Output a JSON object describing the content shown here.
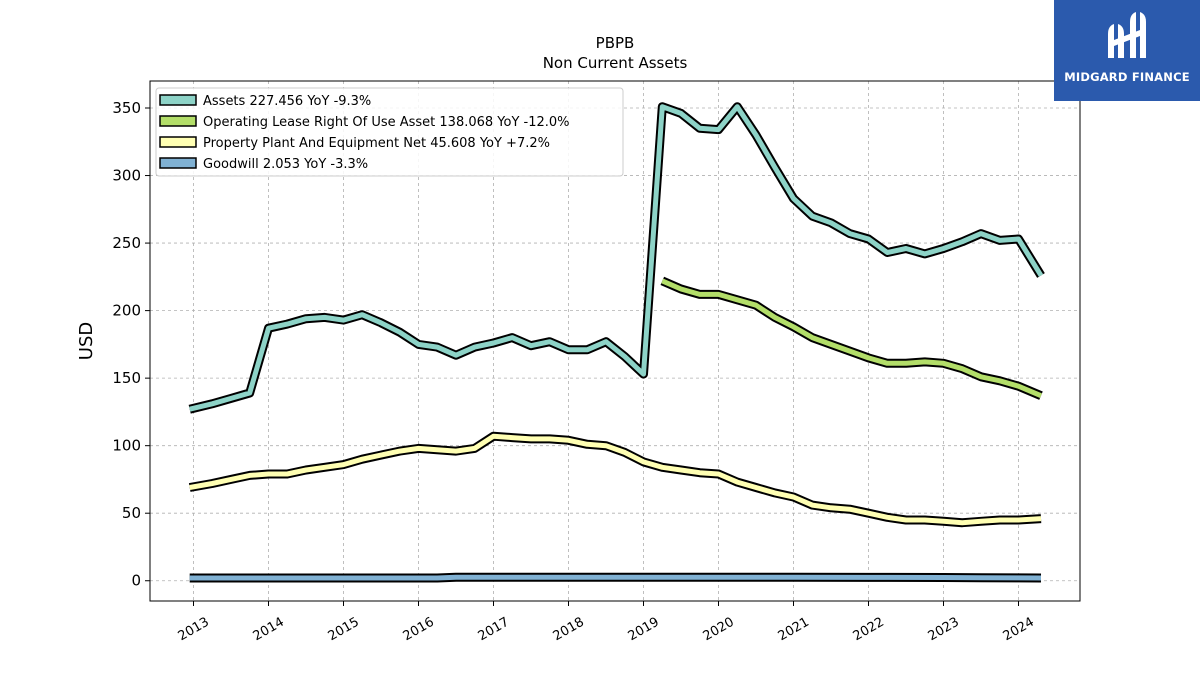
{
  "logo": {
    "text": "MIDGARD FINANCE",
    "icon": "midgard-logo-icon",
    "background": "#2b5aad"
  },
  "chart_data": {
    "type": "line",
    "title": "PBPB",
    "subtitle": "Non Current  Assets",
    "ylabel": "USD",
    "xlabel": "",
    "ylim": [
      -15,
      370
    ],
    "xlim": [
      2012.42,
      2024.82
    ],
    "yticks": [
      0,
      50,
      100,
      150,
      200,
      250,
      300,
      350
    ],
    "xticks": [
      "2013",
      "2014",
      "2015",
      "2016",
      "2017",
      "2018",
      "2019",
      "2020",
      "2021",
      "2022",
      "2023",
      "2024"
    ],
    "grid": true,
    "legend_position": "top-left",
    "series": [
      {
        "name": "Assets",
        "legend": "Assets  227.456 YoY -9.3%",
        "color": "#8dd3c7",
        "points": [
          [
            2012.95,
            127
          ],
          [
            2013.25,
            131
          ],
          [
            2013.5,
            135
          ],
          [
            2013.75,
            139
          ],
          [
            2014.0,
            187
          ],
          [
            2014.25,
            190
          ],
          [
            2014.5,
            194
          ],
          [
            2014.75,
            195
          ],
          [
            2015.0,
            193
          ],
          [
            2015.25,
            197
          ],
          [
            2015.5,
            191
          ],
          [
            2015.75,
            184
          ],
          [
            2016.0,
            175
          ],
          [
            2016.25,
            173
          ],
          [
            2016.5,
            167
          ],
          [
            2016.75,
            173
          ],
          [
            2017.0,
            176
          ],
          [
            2017.25,
            180
          ],
          [
            2017.5,
            174
          ],
          [
            2017.75,
            177
          ],
          [
            2018.0,
            171
          ],
          [
            2018.25,
            171
          ],
          [
            2018.5,
            177
          ],
          [
            2018.75,
            166
          ],
          [
            2019.0,
            153
          ],
          [
            2019.25,
            351
          ],
          [
            2019.5,
            346
          ],
          [
            2019.75,
            335
          ],
          [
            2020.0,
            334
          ],
          [
            2020.25,
            351
          ],
          [
            2020.5,
            330
          ],
          [
            2020.75,
            306
          ],
          [
            2021.0,
            283
          ],
          [
            2021.25,
            270
          ],
          [
            2021.5,
            265
          ],
          [
            2021.75,
            257
          ],
          [
            2022.0,
            253
          ],
          [
            2022.25,
            243
          ],
          [
            2022.5,
            246
          ],
          [
            2022.75,
            242
          ],
          [
            2023.0,
            246
          ],
          [
            2023.25,
            251
          ],
          [
            2023.5,
            257
          ],
          [
            2023.75,
            252
          ],
          [
            2024.0,
            253
          ],
          [
            2024.3,
            226
          ]
        ]
      },
      {
        "name": "Operating Lease Right Of Use Asset",
        "legend": "Operating Lease Right Of Use Asset  138.068 YoY -12.0%",
        "color": "#b3de69",
        "points": [
          [
            2019.25,
            222
          ],
          [
            2019.5,
            216
          ],
          [
            2019.75,
            212
          ],
          [
            2020.0,
            212
          ],
          [
            2020.25,
            208
          ],
          [
            2020.5,
            204
          ],
          [
            2020.75,
            195
          ],
          [
            2021.0,
            188
          ],
          [
            2021.25,
            180
          ],
          [
            2021.5,
            175
          ],
          [
            2021.75,
            170
          ],
          [
            2022.0,
            165
          ],
          [
            2022.25,
            161
          ],
          [
            2022.5,
            161
          ],
          [
            2022.75,
            162
          ],
          [
            2023.0,
            161
          ],
          [
            2023.25,
            157
          ],
          [
            2023.5,
            151
          ],
          [
            2023.75,
            148
          ],
          [
            2024.0,
            144
          ],
          [
            2024.3,
            137
          ]
        ]
      },
      {
        "name": "Property Plant And Equipment Net",
        "legend": "Property Plant And Equipment Net  45.608 YoY +7.2%",
        "color": "#ffffb3",
        "points": [
          [
            2012.95,
            69
          ],
          [
            2013.25,
            72
          ],
          [
            2013.5,
            75
          ],
          [
            2013.75,
            78
          ],
          [
            2014.0,
            79
          ],
          [
            2014.25,
            79
          ],
          [
            2014.5,
            82
          ],
          [
            2014.75,
            84
          ],
          [
            2015.0,
            86
          ],
          [
            2015.25,
            90
          ],
          [
            2015.5,
            93
          ],
          [
            2015.75,
            96
          ],
          [
            2016.0,
            98
          ],
          [
            2016.25,
            97
          ],
          [
            2016.5,
            96
          ],
          [
            2016.75,
            98
          ],
          [
            2017.0,
            107
          ],
          [
            2017.25,
            106
          ],
          [
            2017.5,
            105
          ],
          [
            2017.75,
            105
          ],
          [
            2018.0,
            104
          ],
          [
            2018.25,
            101
          ],
          [
            2018.5,
            100
          ],
          [
            2018.75,
            95
          ],
          [
            2019.0,
            88
          ],
          [
            2019.25,
            84
          ],
          [
            2019.5,
            82
          ],
          [
            2019.75,
            80
          ],
          [
            2020.0,
            79
          ],
          [
            2020.25,
            73
          ],
          [
            2020.5,
            69
          ],
          [
            2020.75,
            65
          ],
          [
            2021.0,
            62
          ],
          [
            2021.25,
            56
          ],
          [
            2021.5,
            54
          ],
          [
            2021.75,
            53
          ],
          [
            2022.0,
            50
          ],
          [
            2022.25,
            47
          ],
          [
            2022.5,
            45
          ],
          [
            2022.75,
            45
          ],
          [
            2023.0,
            44
          ],
          [
            2023.25,
            43
          ],
          [
            2023.5,
            44
          ],
          [
            2023.75,
            45
          ],
          [
            2024.0,
            45
          ],
          [
            2024.3,
            46
          ]
        ]
      },
      {
        "name": "Goodwill",
        "legend": "Goodwill  2.053 YoY -3.3%",
        "color": "#80b1d3",
        "points": [
          [
            2012.95,
            2
          ],
          [
            2013.5,
            2
          ],
          [
            2014.0,
            2
          ],
          [
            2014.5,
            2
          ],
          [
            2015.0,
            2
          ],
          [
            2015.5,
            2
          ],
          [
            2016.0,
            2
          ],
          [
            2016.25,
            2
          ],
          [
            2016.5,
            2.6
          ],
          [
            2017.0,
            2.6
          ],
          [
            2018.0,
            2.6
          ],
          [
            2019.0,
            2.6
          ],
          [
            2020.0,
            2.6
          ],
          [
            2021.0,
            2.6
          ],
          [
            2022.0,
            2.5
          ],
          [
            2023.0,
            2.4
          ],
          [
            2023.5,
            2.2
          ],
          [
            2024.0,
            2.1
          ],
          [
            2024.3,
            2.05
          ]
        ]
      }
    ]
  }
}
